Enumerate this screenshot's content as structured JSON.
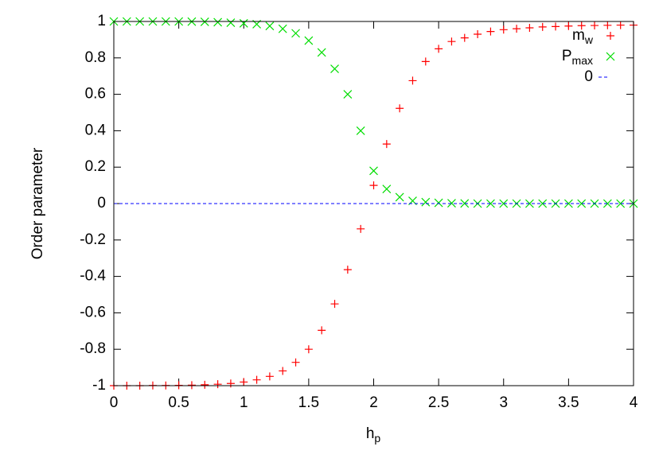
{
  "chart_data": {
    "type": "scatter",
    "x_label": "h_p",
    "y_label": "Order parameter",
    "x": [
      0,
      0.1,
      0.2,
      0.3,
      0.4,
      0.5,
      0.6,
      0.7,
      0.8,
      0.9,
      1.0,
      1.1,
      1.2,
      1.3,
      1.4,
      1.5,
      1.6,
      1.7,
      1.8,
      1.9,
      2.0,
      2.1,
      2.2,
      2.3,
      2.4,
      2.5,
      2.6,
      2.7,
      2.8,
      2.9,
      3.0,
      3.1,
      3.2,
      3.3,
      3.4,
      3.5,
      3.6,
      3.7,
      3.8,
      3.9,
      4.0
    ],
    "series": [
      {
        "name": "m_w",
        "color": "#ff0000",
        "marker": "plus",
        "values": [
          -1.0,
          -1.0,
          -1.0,
          -0.999,
          -0.999,
          -0.998,
          -0.997,
          -0.995,
          -0.992,
          -0.988,
          -0.98,
          -0.968,
          -0.949,
          -0.919,
          -0.872,
          -0.8,
          -0.696,
          -0.551,
          -0.363,
          -0.139,
          0.1,
          0.327,
          0.523,
          0.675,
          0.78,
          0.85,
          0.89,
          0.91,
          0.93,
          0.945,
          0.955,
          0.96,
          0.965,
          0.97,
          0.972,
          0.975,
          0.977,
          0.978,
          0.979,
          0.98,
          0.98
        ]
      },
      {
        "name": "P_max",
        "color": "#00dd00",
        "marker": "cross",
        "values": [
          1.0,
          1.0,
          1.0,
          1.0,
          1.0,
          1.0,
          0.999,
          0.998,
          0.996,
          0.993,
          0.99,
          0.985,
          0.975,
          0.96,
          0.935,
          0.895,
          0.83,
          0.74,
          0.6,
          0.4,
          0.18,
          0.08,
          0.035,
          0.015,
          0.008,
          0.004,
          0.002,
          0.001,
          0,
          0,
          0,
          0,
          0,
          0,
          0,
          0,
          0,
          0,
          0,
          0,
          0
        ]
      },
      {
        "name": "0",
        "color": "#0000ff",
        "marker": "dashed-line",
        "x": [
          0,
          4
        ],
        "values": [
          0,
          0
        ]
      }
    ],
    "xlim": [
      0,
      4
    ],
    "xticks": [
      0,
      0.5,
      1,
      1.5,
      2,
      2.5,
      3,
      3.5,
      4
    ],
    "ylim": [
      -1,
      1
    ],
    "yticks": [
      -1,
      -0.8,
      -0.6,
      -0.4,
      -0.2,
      0,
      0.2,
      0.4,
      0.6,
      0.8,
      1
    ],
    "grid": false,
    "legend": "top-right"
  }
}
